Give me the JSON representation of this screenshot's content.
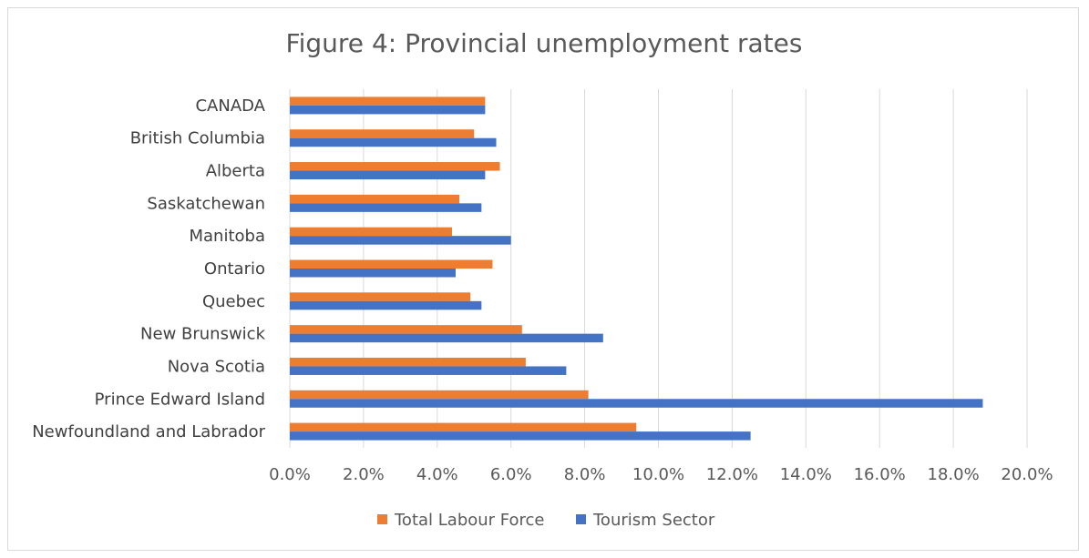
{
  "chart_data": {
    "type": "bar",
    "orientation": "horizontal",
    "title": "Figure 4: Provincial unemployment rates",
    "categories": [
      "CANADA",
      "British Columbia",
      "Alberta",
      "Saskatchewan",
      "Manitoba",
      "Ontario",
      "Quebec",
      "New Brunswick",
      "Nova Scotia",
      "Prince Edward Island",
      "Newfoundland and Labrador"
    ],
    "series": [
      {
        "name": "Total Labour Force",
        "color": "#ed7d31",
        "values": [
          5.3,
          5.0,
          5.7,
          4.6,
          4.4,
          5.5,
          4.9,
          6.3,
          6.4,
          8.1,
          9.4
        ]
      },
      {
        "name": "Tourism Sector",
        "color": "#4472c4",
        "values": [
          5.3,
          5.6,
          5.3,
          5.2,
          6.0,
          4.5,
          5.2,
          8.5,
          7.5,
          18.8,
          12.5
        ]
      }
    ],
    "xlim": [
      0,
      20
    ],
    "xticks": [
      "0.0%",
      "2.0%",
      "4.0%",
      "6.0%",
      "8.0%",
      "10.0%",
      "12.0%",
      "14.0%",
      "16.0%",
      "18.0%",
      "20.0%"
    ],
    "grid": true,
    "legend_position": "bottom"
  }
}
